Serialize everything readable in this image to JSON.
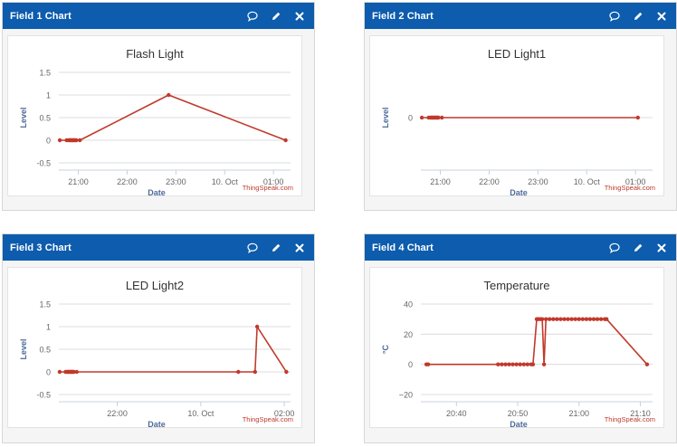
{
  "panels": [
    {
      "header": {
        "title": "Field 1 Chart"
      },
      "chart_data": {
        "type": "line",
        "title": "Flash Light",
        "xlabel": "Date",
        "ylabel": "Level",
        "xlim": [
          20.6,
          25.35
        ],
        "ylim": [
          -0.5,
          1.5
        ],
        "yticks": [
          -0.5,
          0,
          0.5,
          1,
          1.5
        ],
        "ytick_labels": [
          "-0.5",
          "0",
          "0.5",
          "1",
          "1.5"
        ],
        "xticks": [
          {
            "value": 21,
            "label": "21:00"
          },
          {
            "value": 22,
            "label": "22:00"
          },
          {
            "value": 23,
            "label": "23:00"
          },
          {
            "value": 24,
            "label": "10. Oct"
          },
          {
            "value": 25,
            "label": "01:00"
          }
        ],
        "points": [
          [
            20.62,
            0
          ],
          [
            20.76,
            0
          ],
          [
            20.8,
            0
          ],
          [
            20.82,
            0
          ],
          [
            20.84,
            0
          ],
          [
            20.86,
            0
          ],
          [
            20.88,
            0
          ],
          [
            20.9,
            0
          ],
          [
            20.92,
            0
          ],
          [
            20.94,
            0
          ],
          [
            20.96,
            0
          ],
          [
            21.03,
            0
          ],
          [
            22.85,
            1
          ],
          [
            25.25,
            0
          ]
        ],
        "grid": true,
        "color": "#c0392b",
        "credit": "ThingSpeak.com"
      }
    },
    {
      "header": {
        "title": "Field 2 Chart"
      },
      "chart_data": {
        "type": "line",
        "title": "LED Light1",
        "xlabel": "Date",
        "ylabel": "Level",
        "xlim": [
          20.6,
          25.35
        ],
        "ylim": [
          -1.5,
          1.5
        ],
        "yticks": [
          0
        ],
        "ytick_labels": [
          "0"
        ],
        "xticks": [
          {
            "value": 21,
            "label": "21:00"
          },
          {
            "value": 22,
            "label": "22:00"
          },
          {
            "value": 23,
            "label": "23:00"
          },
          {
            "value": 24,
            "label": "10. Oct"
          },
          {
            "value": 25,
            "label": "01:00"
          }
        ],
        "points": [
          [
            20.62,
            0
          ],
          [
            20.76,
            0
          ],
          [
            20.8,
            0
          ],
          [
            20.82,
            0
          ],
          [
            20.84,
            0
          ],
          [
            20.86,
            0
          ],
          [
            20.88,
            0
          ],
          [
            20.9,
            0
          ],
          [
            20.92,
            0
          ],
          [
            20.94,
            0
          ],
          [
            20.96,
            0
          ],
          [
            21.03,
            0
          ],
          [
            25.05,
            0
          ]
        ],
        "grid": true,
        "color": "#c0392b",
        "credit": "ThingSpeak.com"
      }
    },
    {
      "header": {
        "title": "Field 3 Chart"
      },
      "chart_data": {
        "type": "line",
        "title": "LED Light2",
        "xlabel": "Date",
        "ylabel": "Level",
        "xlim": [
          20.6,
          26.15
        ],
        "ylim": [
          -0.5,
          1.5
        ],
        "yticks": [
          -0.5,
          0,
          0.5,
          1,
          1.5
        ],
        "ytick_labels": [
          "-0.5",
          "0",
          "0.5",
          "1",
          "1.5"
        ],
        "xticks": [
          {
            "value": 22,
            "label": "22:00"
          },
          {
            "value": 24,
            "label": "10. Oct"
          },
          {
            "value": 26,
            "label": "02:00"
          }
        ],
        "points": [
          [
            20.62,
            0
          ],
          [
            20.76,
            0
          ],
          [
            20.8,
            0
          ],
          [
            20.82,
            0
          ],
          [
            20.84,
            0
          ],
          [
            20.86,
            0
          ],
          [
            20.88,
            0
          ],
          [
            20.9,
            0
          ],
          [
            20.92,
            0
          ],
          [
            20.94,
            0
          ],
          [
            20.96,
            0
          ],
          [
            21.03,
            0
          ],
          [
            24.9,
            0
          ],
          [
            25.3,
            0
          ],
          [
            25.35,
            1
          ],
          [
            26.05,
            0
          ]
        ],
        "grid": true,
        "color": "#c0392b",
        "credit": "ThingSpeak.com"
      }
    },
    {
      "header": {
        "title": "Field 4 Chart"
      },
      "chart_data": {
        "type": "line",
        "title": "Temperature",
        "xlabel": "Date",
        "ylabel": "°C",
        "xlim": [
          20.57,
          21.2
        ],
        "ylim": [
          -20,
          40
        ],
        "yticks": [
          -20,
          0,
          20,
          40
        ],
        "ytick_labels": [
          "−20",
          "0",
          "20",
          "40"
        ],
        "xticks": [
          {
            "value": 20.6667,
            "label": "20:40"
          },
          {
            "value": 20.8333,
            "label": "20:50"
          },
          {
            "value": 21.0,
            "label": "21:00"
          },
          {
            "value": 21.1667,
            "label": "21:10"
          }
        ],
        "points": [
          [
            20.585,
            0
          ],
          [
            20.59,
            0
          ],
          [
            20.78,
            0
          ],
          [
            20.79,
            0
          ],
          [
            20.8,
            0
          ],
          [
            20.81,
            0
          ],
          [
            20.82,
            0
          ],
          [
            20.83,
            0
          ],
          [
            20.84,
            0
          ],
          [
            20.85,
            0
          ],
          [
            20.86,
            0
          ],
          [
            20.87,
            0
          ],
          [
            20.875,
            0
          ],
          [
            20.885,
            30
          ],
          [
            20.89,
            30
          ],
          [
            20.895,
            30
          ],
          [
            20.9,
            30
          ],
          [
            20.905,
            0
          ],
          [
            20.91,
            30
          ],
          [
            20.92,
            30
          ],
          [
            20.93,
            30
          ],
          [
            20.94,
            30
          ],
          [
            20.95,
            30
          ],
          [
            20.96,
            30
          ],
          [
            20.97,
            30
          ],
          [
            20.98,
            30
          ],
          [
            20.99,
            30
          ],
          [
            21.0,
            30
          ],
          [
            21.01,
            30
          ],
          [
            21.02,
            30
          ],
          [
            21.03,
            30
          ],
          [
            21.04,
            30
          ],
          [
            21.05,
            30
          ],
          [
            21.06,
            30
          ],
          [
            21.07,
            30
          ],
          [
            21.075,
            30
          ],
          [
            21.185,
            0
          ]
        ],
        "grid": true,
        "color": "#c0392b",
        "credit": "ThingSpeak.com"
      }
    }
  ],
  "icons": {
    "comment": "comment-icon",
    "edit": "pencil-icon",
    "close": "close-icon"
  },
  "colors": {
    "header": "#0d5cad",
    "line": "#c0392b",
    "axis_text": "#666666",
    "axis_title": "#4d6a99",
    "grid": "#dcdcdc",
    "credit": "#c0392b"
  }
}
